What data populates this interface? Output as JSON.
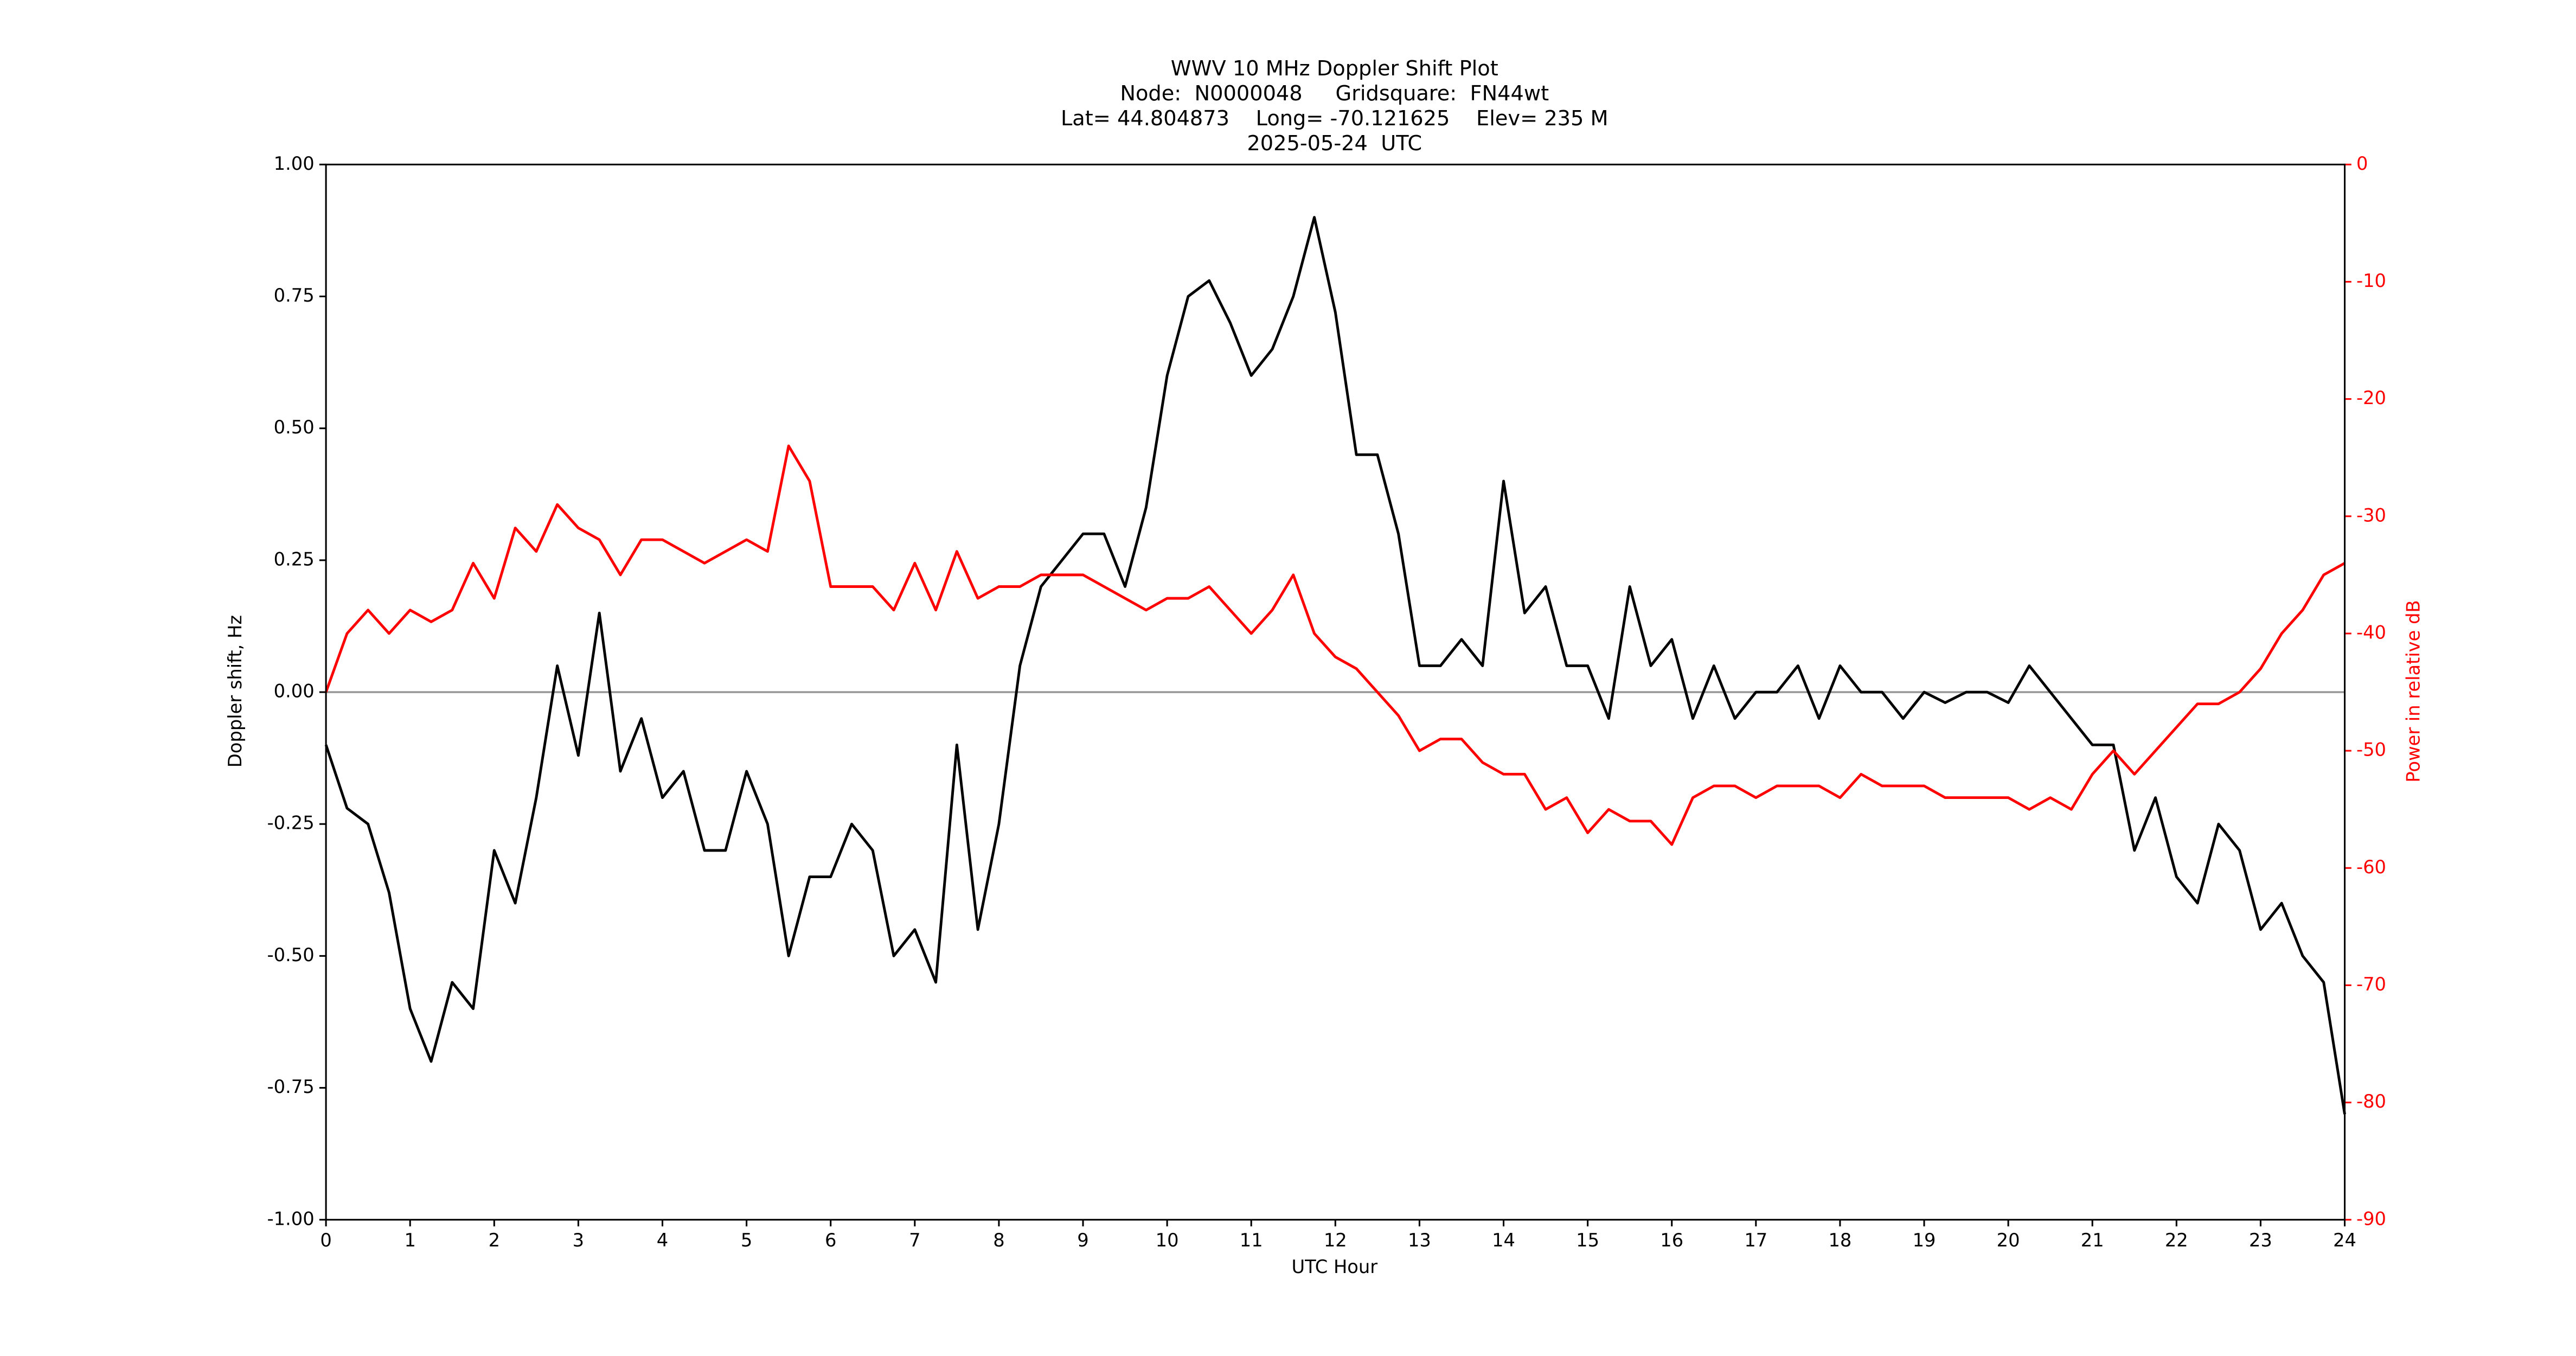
{
  "chart_data": {
    "type": "line",
    "title": [
      "WWV 10 MHz Doppler Shift Plot",
      "Node:  N0000048     Gridsquare:  FN44wt",
      "Lat= 44.804873    Long= -70.121625    Elev= 235 M",
      "2025-05-24  UTC"
    ],
    "xlabel": "UTC Hour",
    "ylabel": "Doppler shift, Hz",
    "y2label": "Power in relative dB",
    "x": [
      0,
      0.25,
      0.5,
      0.75,
      1,
      1.25,
      1.5,
      1.75,
      2,
      2.25,
      2.5,
      2.75,
      3,
      3.25,
      3.5,
      3.75,
      4,
      4.25,
      4.5,
      4.75,
      5,
      5.25,
      5.5,
      5.75,
      6,
      6.25,
      6.5,
      6.75,
      7,
      7.25,
      7.5,
      7.75,
      8,
      8.25,
      8.5,
      8.75,
      9,
      9.25,
      9.5,
      9.75,
      10,
      10.25,
      10.5,
      10.75,
      11,
      11.25,
      11.5,
      11.75,
      12,
      12.25,
      12.5,
      12.75,
      13,
      13.25,
      13.5,
      13.75,
      14,
      14.25,
      14.5,
      14.75,
      15,
      15.25,
      15.5,
      15.75,
      16,
      16.25,
      16.5,
      16.75,
      17,
      17.25,
      17.5,
      17.75,
      18,
      18.25,
      18.5,
      18.75,
      19,
      19.25,
      19.5,
      19.75,
      20,
      20.25,
      20.5,
      20.75,
      21,
      21.25,
      21.5,
      21.75,
      22,
      22.25,
      22.5,
      22.75,
      23,
      23.25,
      23.5,
      23.75,
      24
    ],
    "series": [
      {
        "color": "#000000",
        "values": [
          -0.1,
          -0.22,
          -0.25,
          -0.38,
          -0.6,
          -0.7,
          -0.55,
          -0.6,
          -0.3,
          -0.4,
          -0.2,
          0.05,
          -0.12,
          0.15,
          -0.15,
          -0.05,
          -0.2,
          -0.15,
          -0.3,
          -0.3,
          -0.15,
          -0.25,
          -0.5,
          -0.35,
          -0.35,
          -0.25,
          -0.3,
          -0.5,
          -0.45,
          -0.55,
          -0.1,
          -0.45,
          -0.25,
          0.05,
          0.2,
          0.25,
          0.3,
          0.3,
          0.2,
          0.35,
          0.6,
          0.75,
          0.78,
          0.7,
          0.6,
          0.65,
          0.75,
          0.9,
          0.72,
          0.45,
          0.45,
          0.3,
          0.05,
          0.05,
          0.1,
          0.05,
          0.4,
          0.15,
          0.2,
          0.05,
          0.05,
          -0.05,
          0.2,
          0.05,
          0.1,
          -0.05,
          0.05,
          -0.05,
          0,
          0,
          0.05,
          -0.05,
          0.05,
          0,
          0,
          -0.05,
          0,
          -0.02,
          0,
          0,
          -0.02,
          0.05,
          0,
          -0.05,
          -0.1,
          -0.1,
          -0.3,
          -0.2,
          -0.35,
          -0.4,
          -0.25,
          -0.3,
          -0.45,
          -0.4,
          -0.5,
          -0.55,
          -0.8
        ]
      },
      {
        "color": "#ff0000",
        "axis": "y2",
        "values": [
          -45,
          -40,
          -38,
          -40,
          -38,
          -39,
          -38,
          -34,
          -37,
          -31,
          -33,
          -29,
          -31,
          -32,
          -35,
          -32,
          -32,
          -33,
          -34,
          -33,
          -32,
          -33,
          -24,
          -27,
          -36,
          -36,
          -36,
          -38,
          -34,
          -38,
          -33,
          -37,
          -36,
          -36,
          -35,
          -35,
          -35,
          -36,
          -37,
          -38,
          -37,
          -37,
          -36,
          -38,
          -40,
          -38,
          -35,
          -40,
          -42,
          -43,
          -45,
          -47,
          -50,
          -49,
          -49,
          -51,
          -52,
          -52,
          -55,
          -54,
          -57,
          -55,
          -56,
          -56,
          -58,
          -54,
          -53,
          -53,
          -54,
          -53,
          -53,
          -53,
          -54,
          -52,
          -53,
          -53,
          -53,
          -54,
          -54,
          -54,
          -54,
          -55,
          -54,
          -55,
          -52,
          -50,
          -52,
          -50,
          -48,
          -46,
          -46,
          -45,
          -43,
          -40,
          -38,
          -35,
          -34
        ]
      }
    ],
    "hline": 0,
    "hline_color": "#999999",
    "xlim": [
      0,
      24
    ],
    "xticks": [
      0,
      1,
      2,
      3,
      4,
      5,
      6,
      7,
      8,
      9,
      10,
      11,
      12,
      13,
      14,
      15,
      16,
      17,
      18,
      19,
      20,
      21,
      22,
      23,
      24
    ],
    "ylim": [
      -1,
      1
    ],
    "yticks": [
      {
        "value": -1,
        "label": "-1.00"
      },
      {
        "value": -0.75,
        "label": "-0.75"
      },
      {
        "value": -0.5,
        "label": "-0.50"
      },
      {
        "value": -0.25,
        "label": "-0.25"
      },
      {
        "value": 0,
        "label": "0.00"
      },
      {
        "value": 0.25,
        "label": "0.25"
      },
      {
        "value": 0.5,
        "label": "0.50"
      },
      {
        "value": 0.75,
        "label": "0.75"
      },
      {
        "value": 1,
        "label": "1.00"
      }
    ],
    "y2lim": [
      -90,
      0
    ],
    "y2ticks": [
      -90,
      -80,
      -70,
      -60,
      -50,
      -40,
      -30,
      -20,
      -10,
      0
    ],
    "y2color": "#ff0000"
  }
}
